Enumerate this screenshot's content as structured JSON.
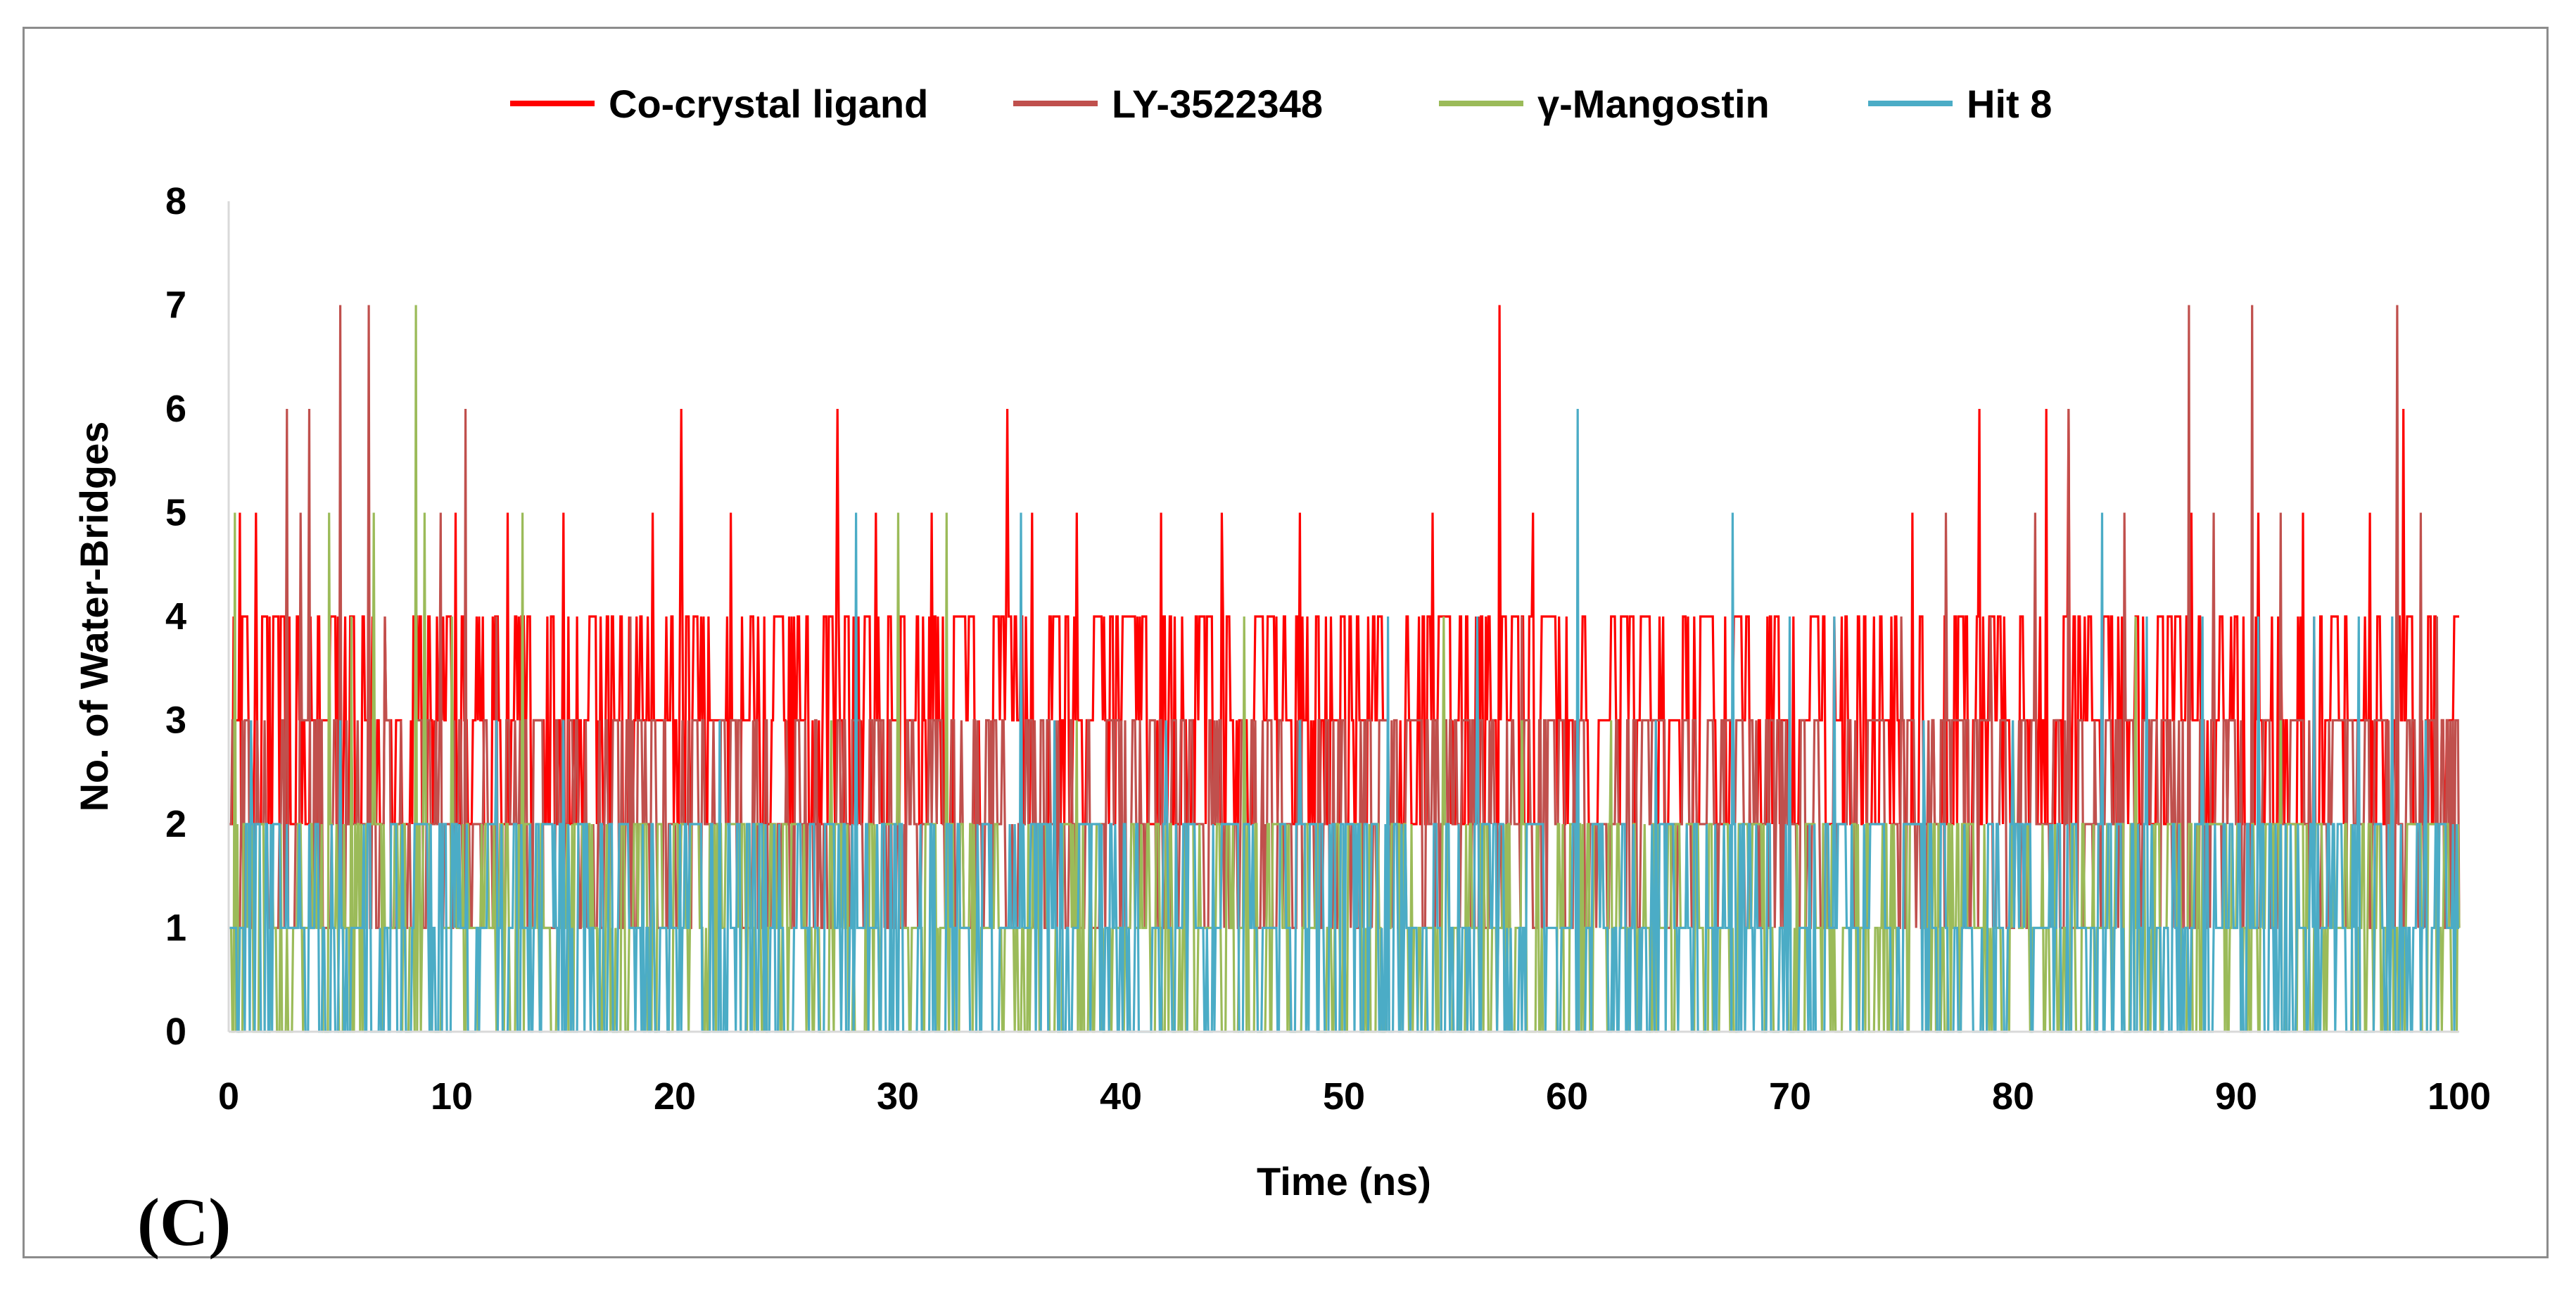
{
  "panel_label": "(C)",
  "chart_data": {
    "type": "line",
    "title": "",
    "xlabel": "Time (ns)",
    "ylabel": "No. of Water-Bridges",
    "xlim": [
      0,
      100
    ],
    "ylim": [
      0,
      8
    ],
    "xticks": [
      0,
      10,
      20,
      30,
      40,
      50,
      60,
      70,
      80,
      90,
      100
    ],
    "yticks": [
      0,
      1,
      2,
      3,
      4,
      5,
      6,
      7,
      8
    ],
    "legend_position": "top-center",
    "series": [
      {
        "name": "Co-crystal ligand",
        "color": "#ff0000",
        "baseline": [
          2,
          4
        ],
        "peaks": [
          [
            0.5,
            5
          ],
          [
            1.2,
            5
          ],
          [
            2.0,
            4
          ],
          [
            10.2,
            5
          ],
          [
            12.5,
            5
          ],
          [
            15.0,
            5
          ],
          [
            17.0,
            4
          ],
          [
            19.0,
            5
          ],
          [
            20.3,
            6
          ],
          [
            22.5,
            5
          ],
          [
            24.0,
            4
          ],
          [
            27.3,
            6
          ],
          [
            29.0,
            5
          ],
          [
            31.5,
            5
          ],
          [
            32.0,
            4
          ],
          [
            34.9,
            6
          ],
          [
            36.0,
            5
          ],
          [
            38.0,
            5
          ],
          [
            41.8,
            5
          ],
          [
            44.5,
            5
          ],
          [
            48.0,
            5
          ],
          [
            50.0,
            4
          ],
          [
            54.0,
            5
          ],
          [
            57.0,
            7
          ],
          [
            58.5,
            5
          ],
          [
            63.0,
            4
          ],
          [
            66.0,
            4
          ],
          [
            69.0,
            4
          ],
          [
            72.0,
            4
          ],
          [
            75.5,
            5
          ],
          [
            78.5,
            6
          ],
          [
            81.5,
            6
          ],
          [
            82.5,
            6
          ],
          [
            85.0,
            4
          ],
          [
            88.0,
            5
          ],
          [
            91.0,
            5
          ],
          [
            93.0,
            5
          ],
          [
            96.0,
            5
          ],
          [
            97.5,
            6
          ],
          [
            100.0,
            4
          ]
        ]
      },
      {
        "name": "LY-3522348",
        "color": "#c0504d",
        "baseline": [
          1,
          3
        ],
        "peaks": [
          [
            2.6,
            6
          ],
          [
            3.2,
            5
          ],
          [
            3.6,
            6
          ],
          [
            5.0,
            7
          ],
          [
            6.3,
            7
          ],
          [
            7.0,
            4
          ],
          [
            9.5,
            5
          ],
          [
            10.6,
            6
          ],
          [
            12.0,
            4
          ],
          [
            18.0,
            4
          ],
          [
            25.0,
            3
          ],
          [
            30.0,
            3
          ],
          [
            40.0,
            3
          ],
          [
            46.0,
            3
          ],
          [
            58.0,
            4
          ],
          [
            63.0,
            3
          ],
          [
            75.0,
            4
          ],
          [
            77.0,
            5
          ],
          [
            79.0,
            4
          ],
          [
            81.0,
            5
          ],
          [
            82.5,
            6
          ],
          [
            85.0,
            5
          ],
          [
            87.9,
            7
          ],
          [
            89.0,
            5
          ],
          [
            90.7,
            7
          ],
          [
            92.0,
            5
          ],
          [
            97.2,
            7
          ],
          [
            98.3,
            5
          ],
          [
            99.0,
            4
          ]
        ]
      },
      {
        "name": "γ-Mangostin",
        "color": "#9bbb59",
        "baseline": [
          0,
          2
        ],
        "peaks": [
          [
            0.3,
            5
          ],
          [
            4.5,
            5
          ],
          [
            5.5,
            4
          ],
          [
            6.5,
            5
          ],
          [
            8.4,
            7
          ],
          [
            8.8,
            5
          ],
          [
            10.0,
            4
          ],
          [
            13.2,
            5
          ],
          [
            27.0,
            3
          ],
          [
            30.0,
            5
          ],
          [
            32.2,
            5
          ],
          [
            38.0,
            3
          ],
          [
            45.5,
            4
          ],
          [
            52.0,
            3
          ],
          [
            54.5,
            4
          ],
          [
            58.0,
            3
          ],
          [
            62.0,
            3
          ],
          [
            80.0,
            3
          ],
          [
            85.5,
            4
          ],
          [
            92.0,
            3
          ],
          [
            97.0,
            3
          ]
        ]
      },
      {
        "name": "Hit 8",
        "color": "#4bacc6",
        "baseline": [
          0,
          2
        ],
        "peaks": [
          [
            1.0,
            3
          ],
          [
            5.0,
            3
          ],
          [
            12.0,
            3
          ],
          [
            15.0,
            3
          ],
          [
            22.0,
            3
          ],
          [
            28.1,
            5
          ],
          [
            35.5,
            5
          ],
          [
            37.0,
            3
          ],
          [
            42.0,
            3
          ],
          [
            48.0,
            3
          ],
          [
            52.0,
            4
          ],
          [
            56.0,
            4
          ],
          [
            60.5,
            6
          ],
          [
            64.0,
            3
          ],
          [
            67.4,
            5
          ],
          [
            70.0,
            4
          ],
          [
            72.0,
            4
          ],
          [
            76.0,
            3
          ],
          [
            80.0,
            3
          ],
          [
            84.0,
            5
          ],
          [
            86.0,
            4
          ],
          [
            88.5,
            4
          ],
          [
            91.0,
            4
          ],
          [
            93.5,
            4
          ],
          [
            95.5,
            4
          ],
          [
            97.0,
            4
          ],
          [
            98.5,
            3
          ],
          [
            99.5,
            1
          ]
        ]
      }
    ]
  }
}
